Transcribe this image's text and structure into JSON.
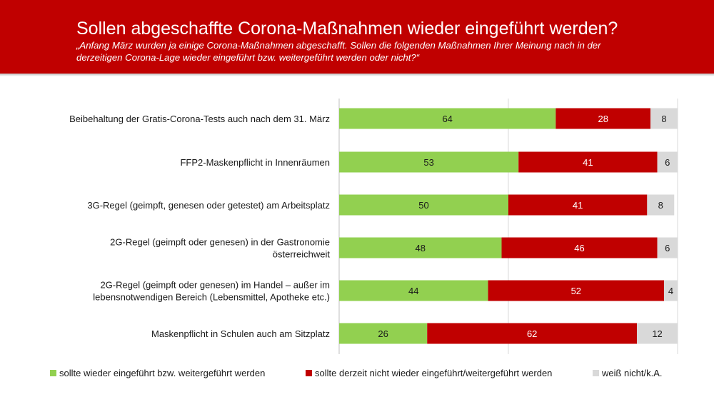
{
  "header": {
    "title": "Sollen abgeschaffte Corona-Maßnahmen wieder eingeführt werden?",
    "subtitle": "„Anfang März wurden ja einige Corona-Maßnahmen abgeschafft. Sollen die folgenden Maßnahmen Ihrer Meinung nach in der derzeitigen Corona-Lage wieder eingeführt bzw. weitergeführt werden oder nicht?“"
  },
  "colors": {
    "header_bg": "#c00000",
    "green": "#92d050",
    "red": "#c00000",
    "gray": "#d9d9d9"
  },
  "chart_data": {
    "type": "bar",
    "orientation": "horizontal",
    "stacked": true,
    "categories": [
      [
        "Beibehaltung der Gratis-Corona-Tests auch nach dem 31. März"
      ],
      [
        "FFP2-Maskenpflicht in Innenräumen"
      ],
      [
        "3G-Regel (geimpft, genesen oder getestet) am Arbeitsplatz"
      ],
      [
        "2G-Regel (geimpft oder genesen) in der Gastronomie",
        "österreichweit"
      ],
      [
        "2G-Regel (geimpft oder genesen) im Handel – außer im",
        "lebensnotwendigen Bereich (Lebensmittel, Apotheke etc.)"
      ],
      [
        "Maskenpflicht in Schulen auch am Sitzplatz"
      ]
    ],
    "series": [
      {
        "name": "sollte wieder eingeführt bzw. weitergeführt werden",
        "color": "#92d050",
        "values": [
          64,
          53,
          50,
          48,
          44,
          26
        ]
      },
      {
        "name": "sollte derzeit nicht wieder eingeführt/weitergeführt werden",
        "color": "#c00000",
        "values": [
          28,
          41,
          41,
          46,
          52,
          62
        ]
      },
      {
        "name": "weiß nicht/k.A.",
        "color": "#d9d9d9",
        "values": [
          8,
          6,
          8,
          6,
          4,
          12
        ]
      }
    ],
    "xlim": [
      0,
      100
    ],
    "grid": true,
    "legend_position": "bottom"
  }
}
